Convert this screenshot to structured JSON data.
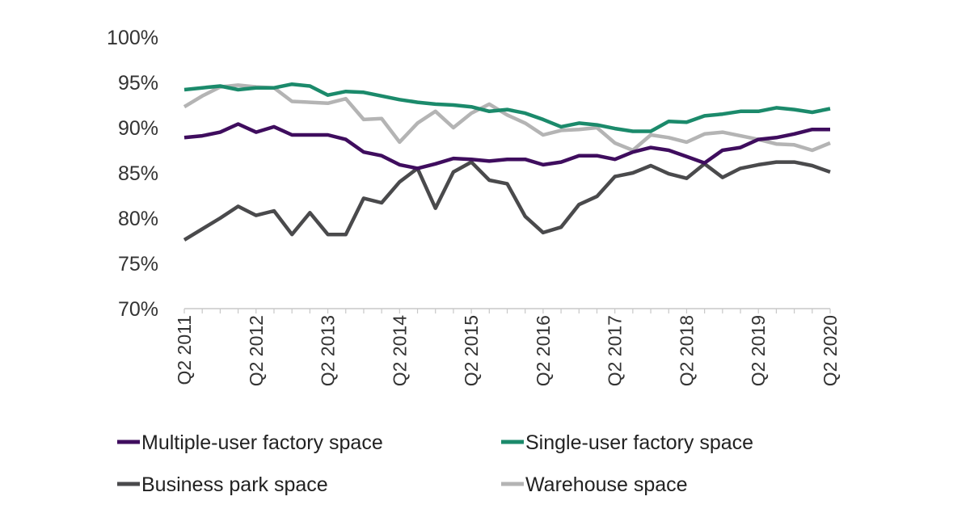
{
  "chart_data": {
    "type": "line",
    "title": "",
    "xlabel": "",
    "ylabel": "",
    "x_frequency": "quarterly",
    "x_tick_labels": [
      "Q2 2011",
      "Q2 2012",
      "Q2 2013",
      "Q2 2014",
      "Q2 2015",
      "Q2 2016",
      "Q2 2017",
      "Q2 2018",
      "Q2 2019",
      "Q2 2020"
    ],
    "y_tick_labels": [
      "70%",
      "75%",
      "80%",
      "85%",
      "90%",
      "95%",
      "100%"
    ],
    "ylim": [
      70,
      100
    ],
    "y_unit": "%",
    "grid": false,
    "legend_position": "bottom",
    "series": [
      {
        "name": "Multiple-user factory space",
        "color": "#3f0d5e",
        "values": [
          88.9,
          89.1,
          89.5,
          90.4,
          89.5,
          90.1,
          89.2,
          89.2,
          89.2,
          88.7,
          87.3,
          86.9,
          85.9,
          85.5,
          86.0,
          86.6,
          86.5,
          86.3,
          86.5,
          86.5,
          85.9,
          86.2,
          86.9,
          86.9,
          86.5,
          87.3,
          87.8,
          87.5,
          86.8,
          86.1,
          87.5,
          87.8,
          88.7,
          88.9,
          89.3,
          89.8,
          89.8
        ]
      },
      {
        "name": "Single-user factory space",
        "color": "#1b8a6b",
        "values": [
          94.2,
          94.4,
          94.6,
          94.2,
          94.4,
          94.4,
          94.8,
          94.6,
          93.6,
          94.0,
          93.9,
          93.5,
          93.1,
          92.8,
          92.6,
          92.5,
          92.3,
          91.8,
          92.0,
          91.6,
          90.9,
          90.1,
          90.5,
          90.3,
          89.9,
          89.6,
          89.6,
          90.7,
          90.6,
          91.3,
          91.5,
          91.8,
          91.8,
          92.2,
          92.0,
          91.7,
          92.1
        ]
      },
      {
        "name": "Business park space",
        "color": "#4a4a4c",
        "values": [
          77.6,
          78.8,
          80.0,
          81.3,
          80.3,
          80.8,
          78.2,
          80.6,
          78.2,
          78.2,
          82.2,
          81.7,
          84.0,
          85.5,
          81.1,
          85.1,
          86.2,
          84.2,
          83.8,
          80.2,
          78.4,
          79.0,
          81.5,
          82.4,
          84.6,
          85.0,
          85.8,
          84.9,
          84.4,
          86.0,
          84.5,
          85.5,
          85.9,
          86.2,
          86.2,
          85.8,
          85.1
        ]
      },
      {
        "name": "Warehouse space",
        "color": "#b4b4b4",
        "values": [
          92.3,
          93.5,
          94.5,
          94.7,
          94.5,
          94.4,
          92.9,
          92.8,
          92.7,
          93.2,
          90.9,
          91.0,
          88.4,
          90.5,
          91.8,
          90.0,
          91.6,
          92.6,
          91.4,
          90.5,
          89.2,
          89.7,
          89.8,
          90.0,
          88.3,
          87.5,
          89.2,
          88.9,
          88.4,
          89.3,
          89.5,
          89.1,
          88.7,
          88.2,
          88.1,
          87.5,
          88.3
        ]
      }
    ]
  }
}
